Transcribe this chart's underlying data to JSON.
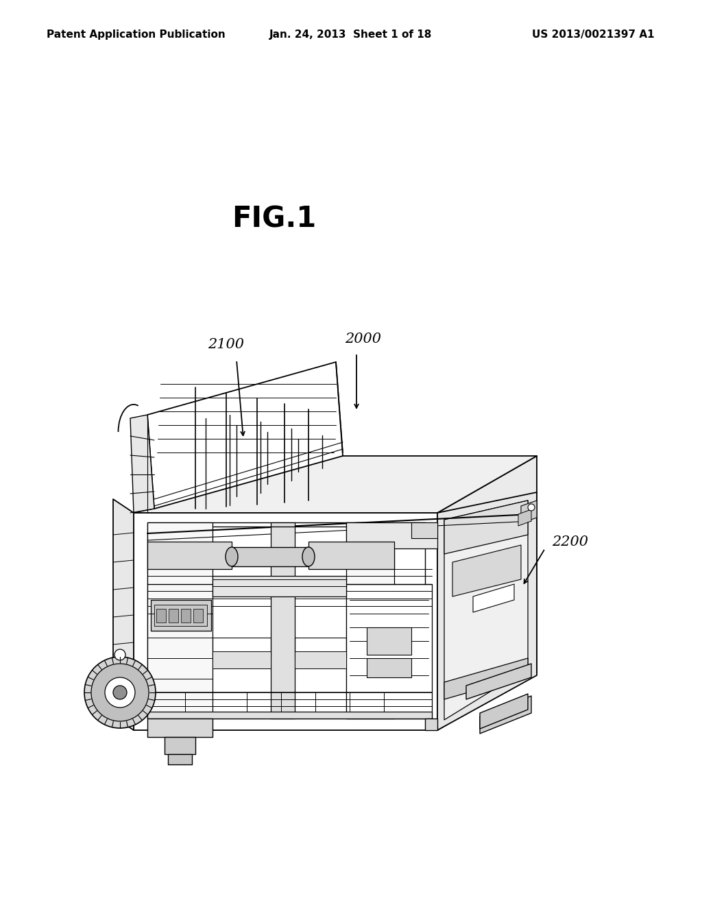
{
  "background_color": "#ffffff",
  "header_left": "Patent Application Publication",
  "header_center": "Jan. 24, 2013  Sheet 1 of 18",
  "header_right": "US 2013/0021397 A1",
  "fig_title": "FIG.1",
  "label_2100": "2100",
  "label_2000": "2000",
  "label_2200": "2200",
  "label_fontsize": 15,
  "header_fontsize": 11,
  "fig_title_fontsize": 30
}
